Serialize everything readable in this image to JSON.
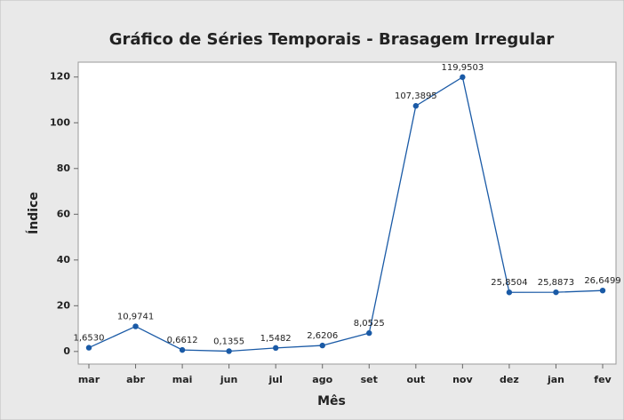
{
  "chart_data": {
    "type": "line",
    "title": "Gráfico de Séries Temporais - Brasagem Irregular",
    "x_label": "Mês",
    "y_label": "Índice",
    "categories": [
      "mar",
      "abr",
      "mai",
      "jun",
      "jul",
      "ago",
      "set",
      "out",
      "nov",
      "dez",
      "jan",
      "fev"
    ],
    "series": [
      {
        "color": "#1a5aa6",
        "values": [
          1.653,
          10.9741,
          0.6612,
          0.1355,
          1.5482,
          2.6206,
          8.0525,
          107.3895,
          119.9503,
          25.8504,
          25.8873,
          26.6499
        ],
        "value_labels": [
          "1,6530",
          "10,9741",
          "0,6612",
          "0,1355",
          "1,5482",
          "2,6206",
          "8,0525",
          "107,3895",
          "119,9503",
          "25,8504",
          "25,8873",
          "26,6499"
        ]
      }
    ],
    "ylim": [
      -5.5,
      126.5
    ],
    "yticks": [
      0,
      20,
      40,
      60,
      80,
      100,
      120
    ],
    "grid": false
  }
}
